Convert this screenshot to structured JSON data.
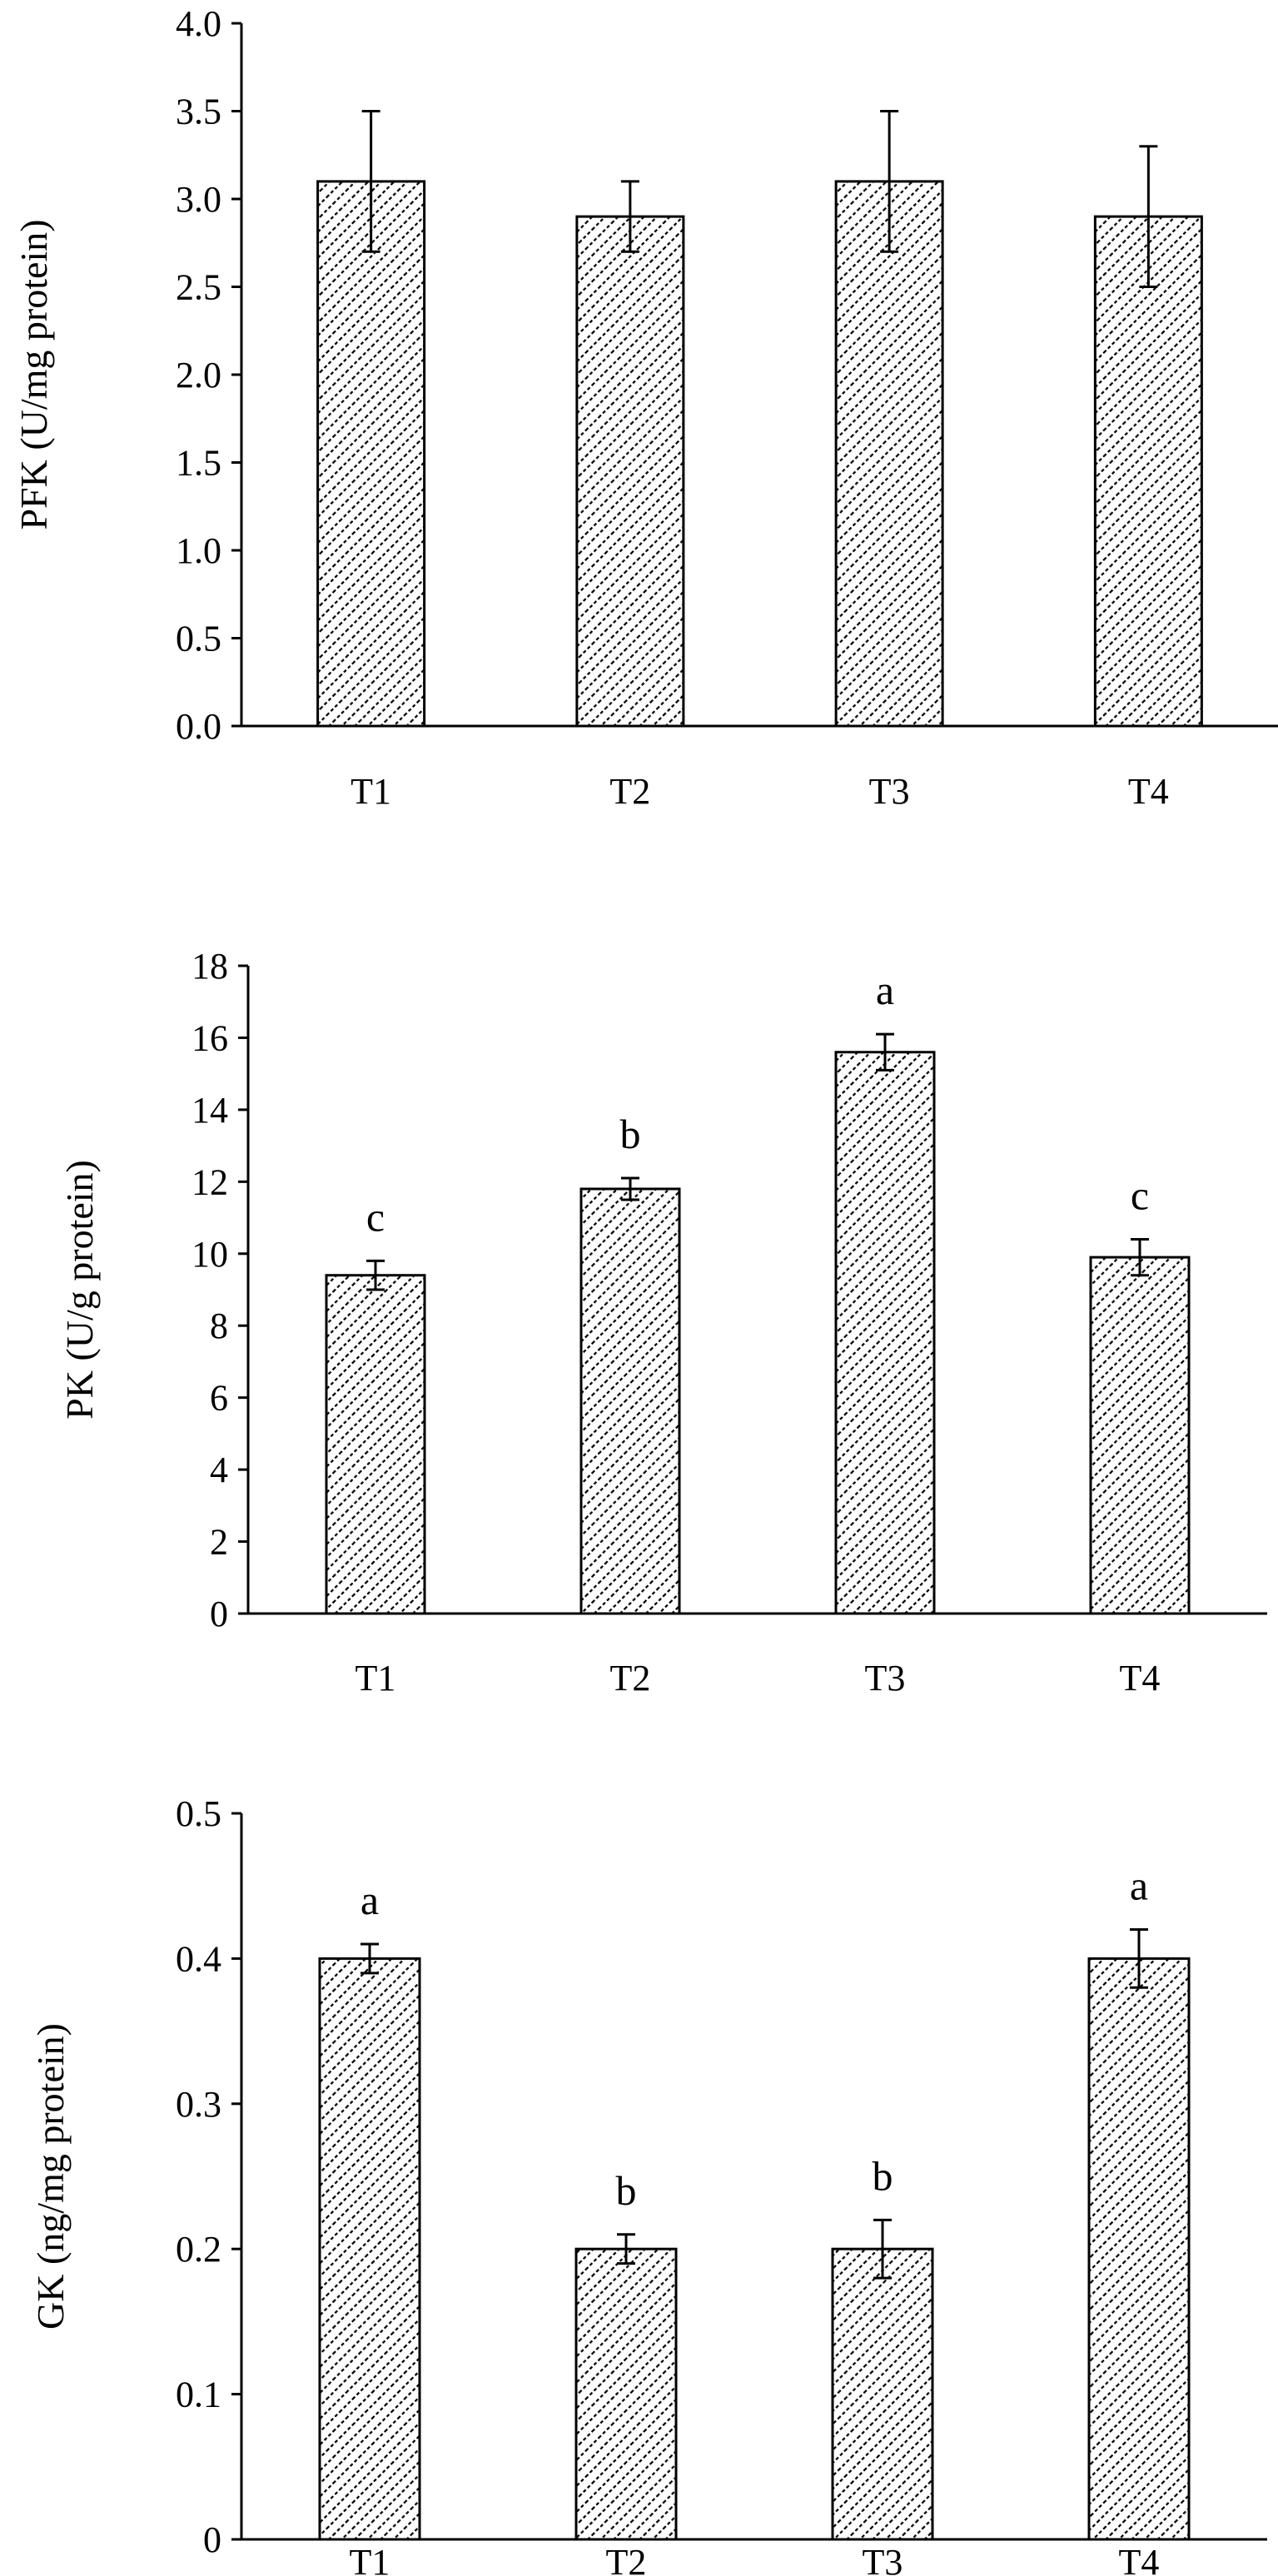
{
  "chart_data": [
    {
      "type": "bar",
      "ylabel": "PFK (U/mg protein)",
      "categories": [
        "T1",
        "T2",
        "T3",
        "T4"
      ],
      "values": [
        3.1,
        2.9,
        3.1,
        2.9
      ],
      "errors": [
        0.4,
        0.2,
        0.4,
        0.4
      ],
      "annotations": [
        "",
        "",
        "",
        ""
      ],
      "ylim": [
        0,
        4.0
      ],
      "yticks": [
        "0.0",
        "0.5",
        "1.0",
        "1.5",
        "2.0",
        "2.5",
        "3.0",
        "3.5",
        "4.0"
      ],
      "grid": false,
      "bar_fill": "diagonal hatch",
      "bar_color": "#000000"
    },
    {
      "type": "bar",
      "ylabel": "PK (U/g protein)",
      "categories": [
        "T1",
        "T2",
        "T3",
        "T4"
      ],
      "values": [
        9.4,
        11.8,
        15.6,
        9.9
      ],
      "errors": [
        0.4,
        0.3,
        0.5,
        0.5
      ],
      "annotations": [
        "c",
        "b",
        "a",
        "c"
      ],
      "ylim": [
        0,
        18
      ],
      "yticks": [
        "0",
        "2",
        "4",
        "6",
        "8",
        "10",
        "12",
        "14",
        "16",
        "18"
      ],
      "grid": false,
      "bar_fill": "diagonal hatch",
      "bar_color": "#000000"
    },
    {
      "type": "bar",
      "ylabel": "GK (ng/mg protein)",
      "categories": [
        "T1",
        "T2",
        "T3",
        "T4"
      ],
      "values": [
        0.4,
        0.2,
        0.2,
        0.4
      ],
      "errors": [
        0.01,
        0.01,
        0.02,
        0.02
      ],
      "annotations": [
        "a",
        "b",
        "b",
        "a"
      ],
      "ylim": [
        0,
        0.5
      ],
      "yticks": [
        "0",
        "0.1",
        "0.2",
        "0.3",
        "0.4",
        "0.5"
      ],
      "grid": false,
      "bar_fill": "diagonal hatch",
      "bar_color": "#000000"
    }
  ]
}
